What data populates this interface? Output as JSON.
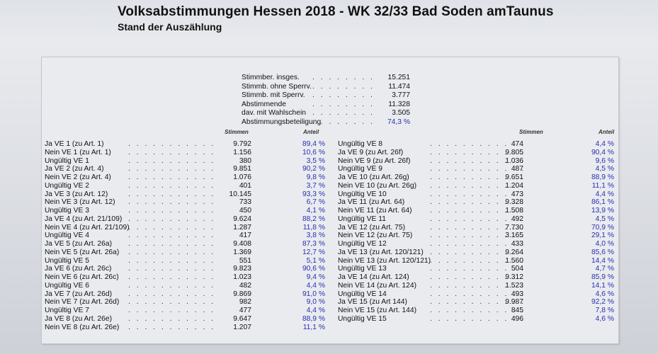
{
  "header": {
    "title": "Volksabstimmungen Hessen 2018 - WK 32/33 Bad Soden amTaunus",
    "subtitle": "Stand der Auszählung"
  },
  "summary": [
    {
      "label": "Stimmber. insges.",
      "value": "15.251"
    },
    {
      "label": "Stimmb. ohne Sperrv.",
      "value": "11.474"
    },
    {
      "label": "Stimmb. mit Sperrv.",
      "value": "3.777"
    },
    {
      "label": "Abstimmende",
      "value": "11.328"
    },
    {
      "label": "dav. mit Wahlschein",
      "value": "3.505"
    },
    {
      "label": "Abstimmungsbeteiligung",
      "value": "74,3 %"
    }
  ],
  "columns": {
    "votes": "Stimmen",
    "share": "Anteil"
  },
  "left": [
    {
      "label": "Ja VE 1  (zu Art. 1)",
      "votes": "9.792",
      "share": "89,4 %"
    },
    {
      "label": "Nein VE 1  (zu Art. 1)",
      "votes": "1.156",
      "share": "10,6 %"
    },
    {
      "label": "Ungültig VE 1",
      "votes": "380",
      "share": "3,5 %"
    },
    {
      "label": "Ja VE 2  (zu Art. 4)",
      "votes": "9.851",
      "share": "90,2 %"
    },
    {
      "label": "Nein VE 2  (zu Art. 4)",
      "votes": "1.076",
      "share": "9,8 %"
    },
    {
      "label": "Ungültig VE 2",
      "votes": "401",
      "share": "3,7 %"
    },
    {
      "label": "Ja VE 3  (zu Art. 12)",
      "votes": "10.145",
      "share": "93,3 %"
    },
    {
      "label": "Nein VE 3  (zu Art. 12)",
      "votes": "733",
      "share": "6,7 %"
    },
    {
      "label": "Ungültig VE 3",
      "votes": "450",
      "share": "4,1 %"
    },
    {
      "label": "Ja VE 4 (zu Art. 21/109)",
      "votes": "9.624",
      "share": "88,2 %"
    },
    {
      "label": "Nein VE 4  (zu Art. 21/109)",
      "votes": "1.287",
      "share": "11,8 %"
    },
    {
      "label": "Ungültig VE 4",
      "votes": "417",
      "share": "3,8 %"
    },
    {
      "label": "Ja VE 5 (zu Art. 26a)",
      "votes": "9.408",
      "share": "87,3 %"
    },
    {
      "label": "Nein VE 5 (zu Art. 26a)",
      "votes": "1.369",
      "share": "12,7 %"
    },
    {
      "label": "Ungültig VE 5",
      "votes": "551",
      "share": "5,1 %"
    },
    {
      "label": "Ja VE 6 (zu Art. 26c)",
      "votes": "9.823",
      "share": "90,6 %"
    },
    {
      "label": "Nein VE 6 (zu Art. 26c)",
      "votes": "1.023",
      "share": "9,4 %"
    },
    {
      "label": "Ungültig VE 6",
      "votes": "482",
      "share": "4,4 %"
    },
    {
      "label": "Ja VE 7 (zu Art. 26d)",
      "votes": "9.869",
      "share": "91,0 %"
    },
    {
      "label": "Nein VE 7 (zu Art. 26d)",
      "votes": "982",
      "share": "9,0 %"
    },
    {
      "label": "Ungültig VE 7",
      "votes": "477",
      "share": "4,4 %"
    },
    {
      "label": "Ja VE 8  (zu Art. 26e)",
      "votes": "9.647",
      "share": "88,9 %"
    },
    {
      "label": "Nein VE 8 (zu Art. 26e)",
      "votes": "1.207",
      "share": "11,1 %"
    }
  ],
  "right": [
    {
      "label": "Ungültig VE 8",
      "votes": "474",
      "share": "4,4 %"
    },
    {
      "label": "Ja VE 9 (zu Art. 26f)",
      "votes": "9.805",
      "share": "90,4 %"
    },
    {
      "label": "Nein VE 9 (zu Art. 26f)",
      "votes": "1.036",
      "share": "9,6 %"
    },
    {
      "label": "Ungültig VE 9",
      "votes": "487",
      "share": "4,5 %"
    },
    {
      "label": "Ja VE 10 (zu Art. 26g)",
      "votes": "9.651",
      "share": "88,9 %"
    },
    {
      "label": "Nein VE 10 (zu Art. 26g)",
      "votes": "1.204",
      "share": "11,1 %"
    },
    {
      "label": "Ungültig VE 10",
      "votes": "473",
      "share": "4,4 %"
    },
    {
      "label": "Ja VE 11 (zu Art. 64)",
      "votes": "9.328",
      "share": "86,1 %"
    },
    {
      "label": "Nein VE 11 (zu Art. 64)",
      "votes": "1.508",
      "share": "13,9 %"
    },
    {
      "label": "Ungültig VE 11",
      "votes": "492",
      "share": "4,5 %"
    },
    {
      "label": "Ja VE 12 (zu Art. 75)",
      "votes": "7.730",
      "share": "70,9 %"
    },
    {
      "label": "Nein VE 12 (zu Art. 75)",
      "votes": "3.165",
      "share": "29,1 %"
    },
    {
      "label": "Ungültig VE 12",
      "votes": "433",
      "share": "4,0 %"
    },
    {
      "label": "Ja VE 13 (zu Art. 120/121)",
      "votes": "9.264",
      "share": "85,6 %"
    },
    {
      "label": "Nein VE 13 (zu Art. 120/121)",
      "votes": "1.560",
      "share": "14,4 %"
    },
    {
      "label": "Ungültig VE 13",
      "votes": "504",
      "share": "4,7 %"
    },
    {
      "label": "Ja VE 14 (zu Art. 124)",
      "votes": "9.312",
      "share": "85,9 %"
    },
    {
      "label": "Nein VE 14 (zu Art. 124)",
      "votes": "1.523",
      "share": "14,1 %"
    },
    {
      "label": "Ungültig VE 14",
      "votes": "493",
      "share": "4,6 %"
    },
    {
      "label": "Ja VE 15 (zu Art 144)",
      "votes": "9.987",
      "share": "92,2 %"
    },
    {
      "label": "Nein VE 15 (zu Art. 144)",
      "votes": "845",
      "share": "7,8 %"
    },
    {
      "label": "Ungültig VE 15",
      "votes": "496",
      "share": "4,6 %"
    }
  ],
  "colors": {
    "share_text": "#2a2fb0",
    "panel_bg": "#e9ebef"
  }
}
